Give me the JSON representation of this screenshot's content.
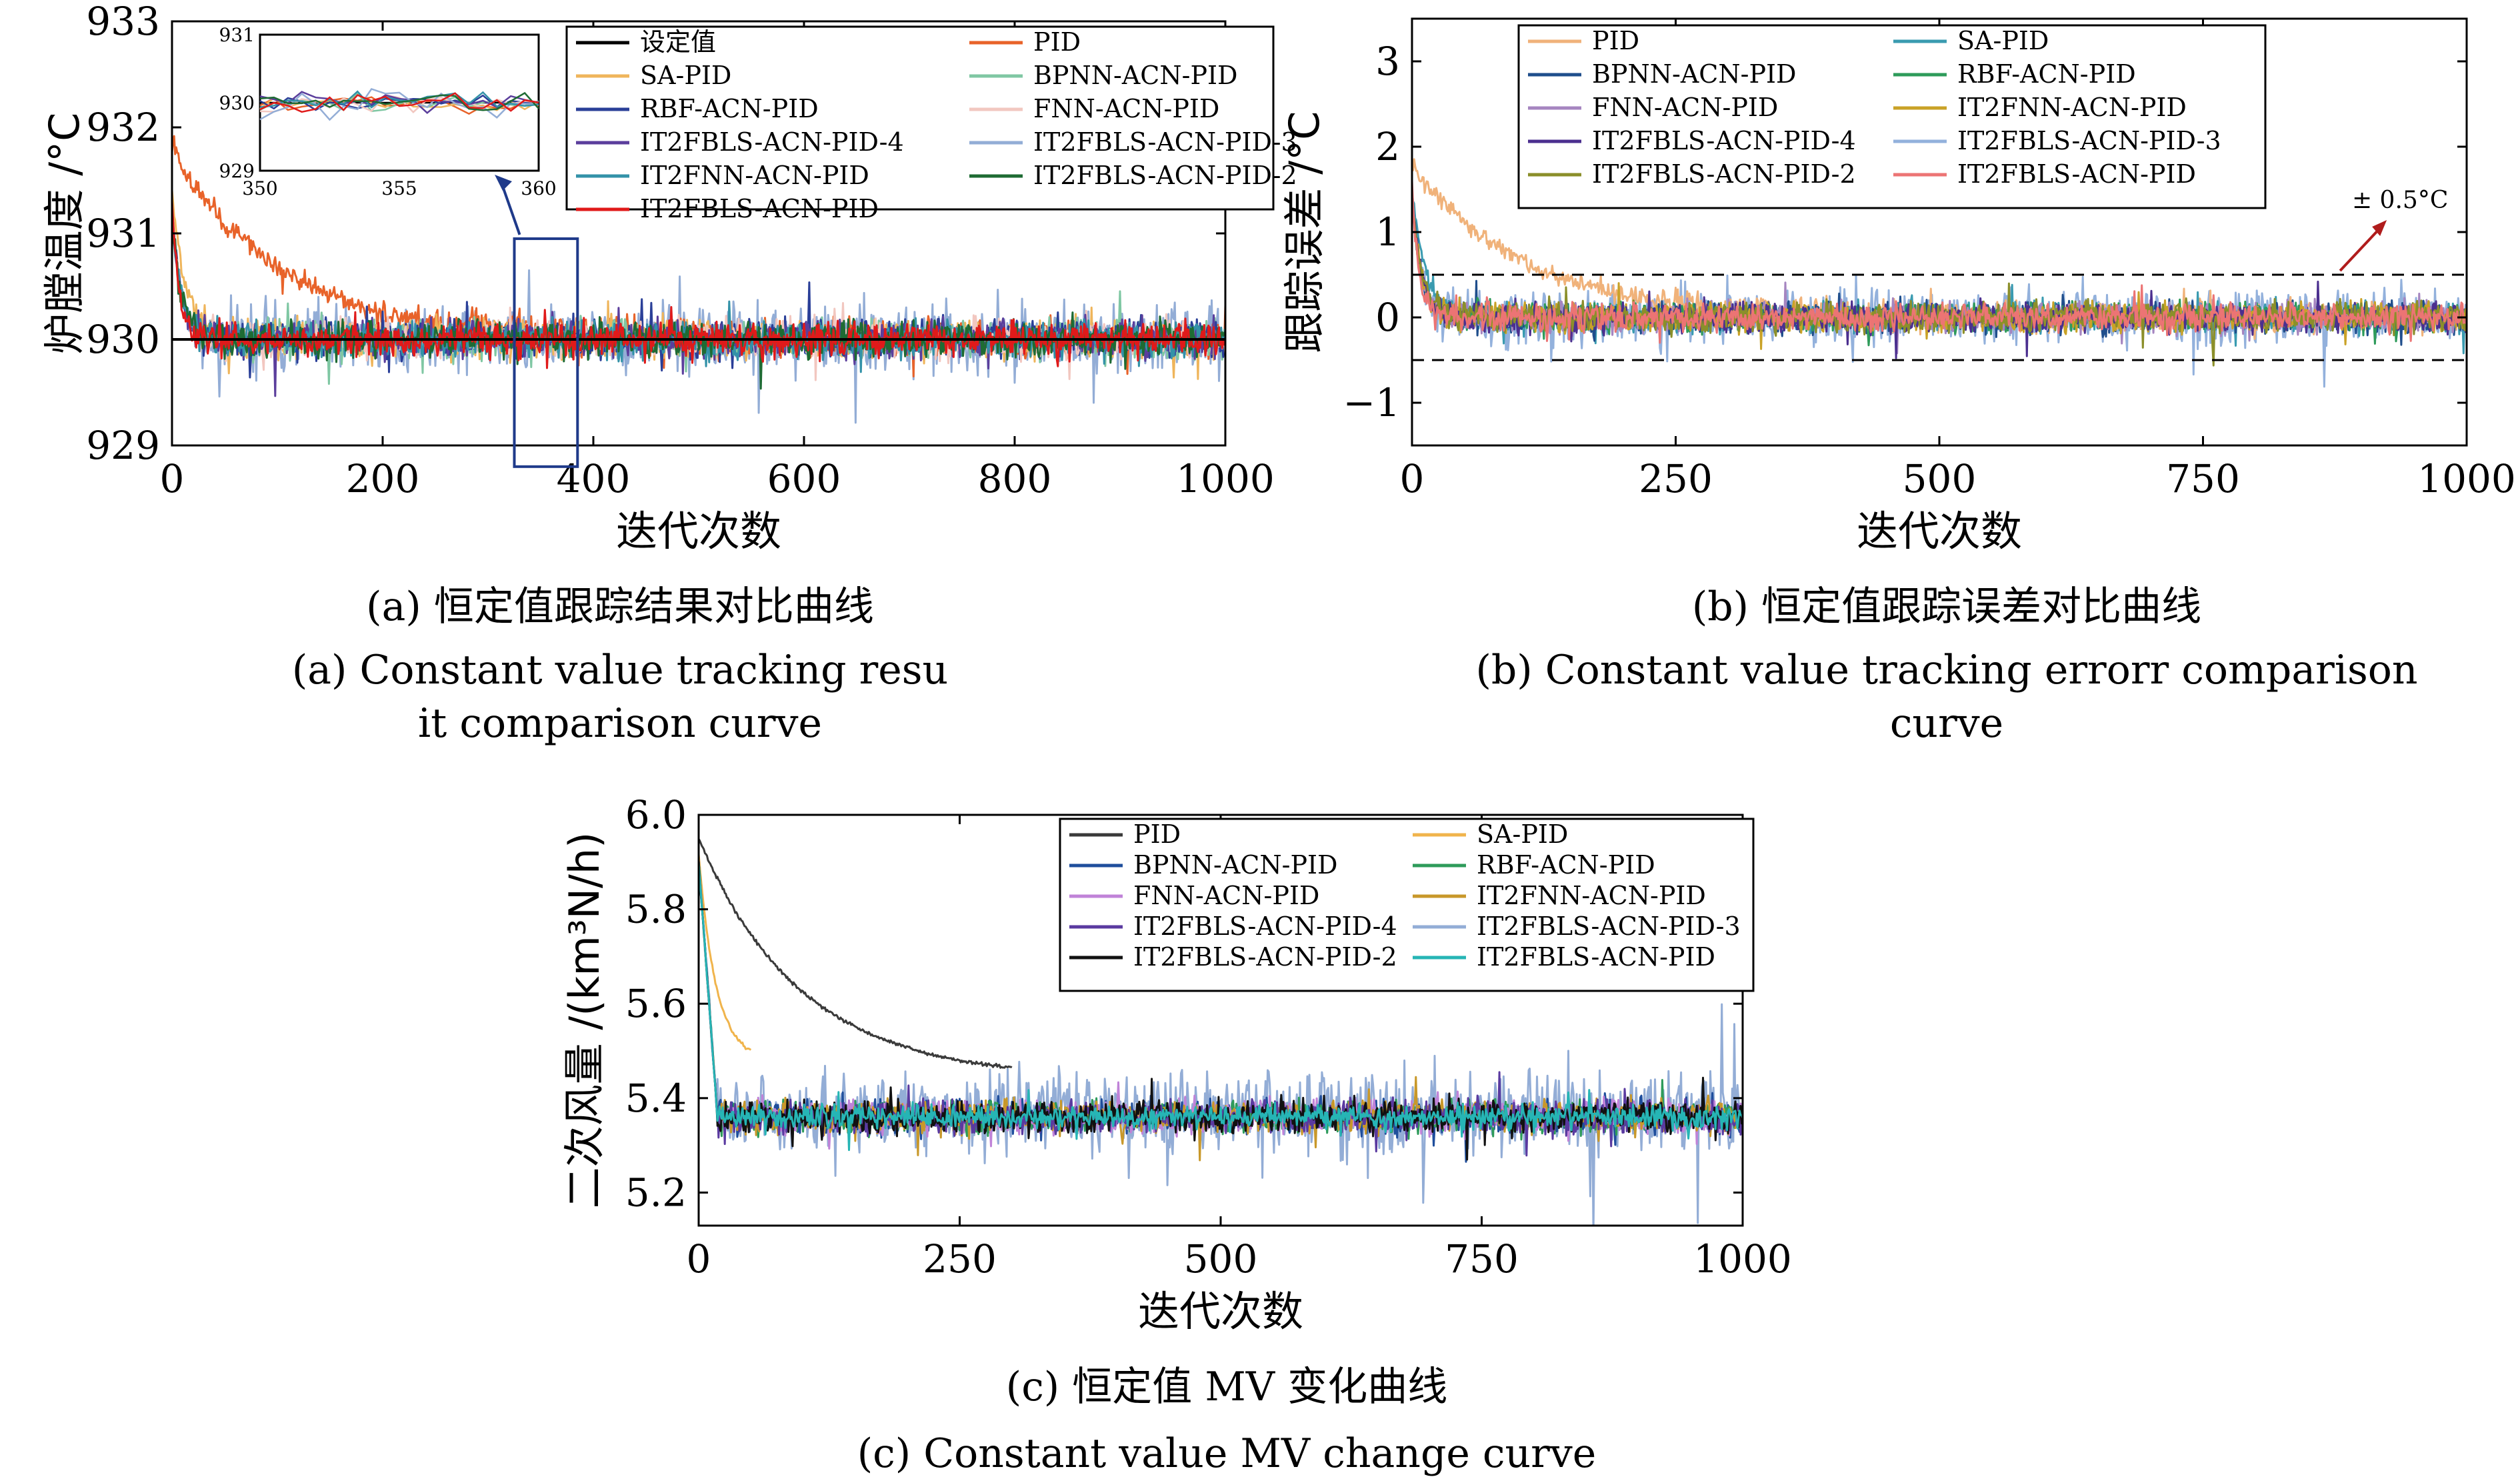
{
  "chart_data": [
    {
      "id": "a",
      "type": "line",
      "xlabel": "迭代次数",
      "ylabel": "炉膛温度 /°C",
      "xlim": [
        0,
        1000
      ],
      "ylim": [
        929,
        933
      ],
      "xticks": [
        "0",
        "200",
        "400",
        "600",
        "800",
        "1000"
      ],
      "yticks": [
        "929",
        "930",
        "931",
        "932",
        "933"
      ],
      "legend_position": "top-right",
      "series": [
        {
          "name": "设定值",
          "color": "#000000",
          "values": "constant 930"
        },
        {
          "name": "PID",
          "color": "#e8632a",
          "start": 931.8,
          "settle_iter": 230,
          "noise": 0.25
        },
        {
          "name": "SA-PID",
          "color": "#efb55b",
          "start": 931.4,
          "settle_iter": 30,
          "noise": 0.25
        },
        {
          "name": "BPNN-ACN-PID",
          "color": "#7fc7a3",
          "start": 931.2,
          "settle_iter": 20,
          "noise": 0.25
        },
        {
          "name": "RBF-ACN-PID",
          "color": "#2a3f98",
          "start": 931.2,
          "settle_iter": 20,
          "noise": 0.25
        },
        {
          "name": "FNN-ACN-PID",
          "color": "#f2c7c0",
          "start": 931.2,
          "settle_iter": 20,
          "noise": 0.25
        },
        {
          "name": "IT2FBLS-ACN-PID-4",
          "color": "#5b3e9c",
          "start": 931.2,
          "settle_iter": 20,
          "noise": 0.25
        },
        {
          "name": "IT2FBLS-ACN-PID-3",
          "color": "#93add6",
          "start": 931.2,
          "settle_iter": 20,
          "noise": 0.45
        },
        {
          "name": "IT2FNN-ACN-PID",
          "color": "#3392a8",
          "start": 931.2,
          "settle_iter": 20,
          "noise": 0.25
        },
        {
          "name": "IT2FBLS-ACN-PID-2",
          "color": "#1e6b33",
          "start": 931.2,
          "settle_iter": 20,
          "noise": 0.25
        },
        {
          "name": "IT2FBLS-ACN-PID",
          "color": "#e01a1a",
          "start": 931.3,
          "settle_iter": 15,
          "noise": 0.22
        }
      ],
      "inset": {
        "xlim": [
          350,
          360
        ],
        "ylim": [
          929,
          931
        ],
        "xticks": [
          "350",
          "355",
          "360"
        ],
        "yticks": [
          "929",
          "930",
          "931"
        ],
        "zoom_x": [
          325,
          385
        ]
      }
    },
    {
      "id": "b",
      "type": "line",
      "xlabel": "迭代次数",
      "ylabel": "跟踪误差 /°C",
      "xlim": [
        0,
        1000
      ],
      "ylim": [
        -1.5,
        3.5
      ],
      "xticks": [
        "0",
        "250",
        "500",
        "750",
        "1000"
      ],
      "yticks": [
        "−1",
        "0",
        "1",
        "2",
        "3"
      ],
      "legend_position": "top-left",
      "bounds": [
        0.5,
        -0.5
      ],
      "annotation": "± 0.5°C",
      "series": [
        {
          "name": "PID",
          "color": "#f0b27a",
          "start": 1.8,
          "settle_iter": 230,
          "noise": 0.25
        },
        {
          "name": "SA-PID",
          "color": "#3a9bb0",
          "start": 1.5,
          "settle_iter": 30,
          "noise": 0.25
        },
        {
          "name": "BPNN-ACN-PID",
          "color": "#1f4e8c",
          "start": 1.4,
          "settle_iter": 20,
          "noise": 0.25
        },
        {
          "name": "RBF-ACN-PID",
          "color": "#2e9b5a",
          "start": 1.4,
          "settle_iter": 20,
          "noise": 0.25
        },
        {
          "name": "FNN-ACN-PID",
          "color": "#a585c0",
          "start": 1.4,
          "settle_iter": 20,
          "noise": 0.25
        },
        {
          "name": "IT2FNN-ACN-PID",
          "color": "#c9a227",
          "start": 1.4,
          "settle_iter": 20,
          "noise": 0.25
        },
        {
          "name": "IT2FBLS-ACN-PID-4",
          "color": "#4b2f8f",
          "start": 1.4,
          "settle_iter": 20,
          "noise": 0.25
        },
        {
          "name": "IT2FBLS-ACN-PID-3",
          "color": "#93b1dc",
          "start": 1.4,
          "settle_iter": 20,
          "noise": 0.45
        },
        {
          "name": "IT2FBLS-ACN-PID-2",
          "color": "#8b8f2a",
          "start": 1.4,
          "settle_iter": 20,
          "noise": 0.25
        },
        {
          "name": "IT2FBLS-ACN-PID",
          "color": "#ec7474",
          "start": 1.5,
          "settle_iter": 15,
          "noise": 0.22
        }
      ]
    },
    {
      "id": "c",
      "type": "line",
      "xlabel": "迭代次数",
      "ylabel": "二次风量 /(km³N/h)",
      "xlim": [
        0,
        1000
      ],
      "ylim": [
        5.13,
        6.0
      ],
      "xticks": [
        "0",
        "250",
        "500",
        "750",
        "1000"
      ],
      "yticks": [
        "5.2",
        "5.4",
        "5.6",
        "5.8",
        "6.0"
      ],
      "legend_position": "top-right",
      "series": [
        {
          "name": "PID",
          "color": "#3a3a3a",
          "start": 5.95,
          "end": 5.44,
          "end_iter": 300
        },
        {
          "name": "SA-PID",
          "color": "#f0b44c",
          "start": 5.92,
          "end": 5.48,
          "end_iter": 50
        },
        {
          "name": "BPNN-ACN-PID",
          "color": "#1f4e9c",
          "start": 5.9,
          "level": 5.36,
          "noise": 0.05
        },
        {
          "name": "RBF-ACN-PID",
          "color": "#2e9b5a",
          "start": 5.9,
          "level": 5.36,
          "noise": 0.05
        },
        {
          "name": "FNN-ACN-PID",
          "color": "#c083d8",
          "start": 5.9,
          "level": 5.36,
          "noise": 0.05
        },
        {
          "name": "IT2FNN-ACN-PID",
          "color": "#c8982a",
          "start": 5.9,
          "level": 5.36,
          "noise": 0.05
        },
        {
          "name": "IT2FBLS-ACN-PID-4",
          "color": "#5a3aa0",
          "start": 5.9,
          "level": 5.36,
          "noise": 0.05
        },
        {
          "name": "IT2FBLS-ACN-PID-3",
          "color": "#93add6",
          "start": 5.9,
          "level": 5.37,
          "noise": 0.12
        },
        {
          "name": "IT2FBLS-ACN-PID-2",
          "color": "#111111",
          "start": 5.9,
          "level": 5.36,
          "noise": 0.05
        },
        {
          "name": "IT2FBLS-ACN-PID",
          "color": "#26b5b5",
          "start": 5.9,
          "level": 5.36,
          "noise": 0.035
        }
      ]
    }
  ],
  "captions": {
    "a_cn": "(a) 恒定值跟踪结果对比曲线",
    "a_en1": "(a)  Constant value tracking resu",
    "a_en2": "it comparison curve",
    "b_cn": "(b) 恒定值跟踪误差对比曲线",
    "b_en1": "(b) Constant value tracking errorr comparison",
    "b_en2": "curve",
    "c_cn": "(c) 恒定值 MV 变化曲线",
    "c_en": "(c) Constant value MV change curve"
  }
}
